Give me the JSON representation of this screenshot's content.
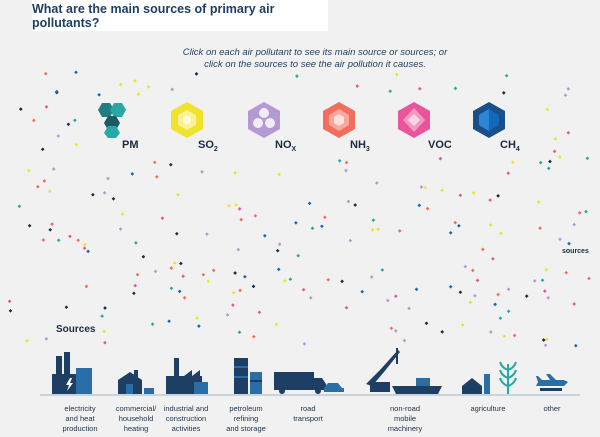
{
  "title": "What are the main sources of primary air pollutants?",
  "instructions": {
    "line1": "Click on each air pollutant to see its main source or sources; or",
    "line2": "click on the sources to see the air pollution it causes."
  },
  "pollutants": [
    {
      "name": "PM",
      "sub": "",
      "icon": "pm-hexagon-cluster-icon",
      "color": "#27a8a5"
    },
    {
      "name": "SO",
      "sub": "2",
      "icon": "so2-hexagon-icon",
      "color": "#f0e32b"
    },
    {
      "name": "NO",
      "sub": "X",
      "icon": "nox-hexagon-icon",
      "color": "#b49ad2"
    },
    {
      "name": "NH",
      "sub": "3",
      "icon": "nh3-hexagon-icon",
      "color": "#f36d5d"
    },
    {
      "name": "VOC",
      "sub": "",
      "icon": "voc-hexagon-icon",
      "color": "#e8559a"
    },
    {
      "name": "CH",
      "sub": "4",
      "icon": "ch4-hexagon-icon",
      "color": "#1468b9"
    }
  ],
  "sources_label": "Sources",
  "sources_side_label": "sources",
  "sources": [
    {
      "lines": [
        "electricity",
        "and heat",
        "production"
      ],
      "icon": "power-plant-icon"
    },
    {
      "lines": [
        "commercial/",
        "household",
        "heating"
      ],
      "icon": "house-icon"
    },
    {
      "lines": [
        "industrial and",
        "construction",
        "activities"
      ],
      "icon": "factory-icon"
    },
    {
      "lines": [
        "petroleum",
        "refining",
        "and storage"
      ],
      "icon": "refinery-icon"
    },
    {
      "lines": [
        "road",
        "transport"
      ],
      "icon": "truck-car-icon"
    },
    {
      "lines": [
        "non-road",
        "mobile",
        "machinery"
      ],
      "icon": "crane-ship-icon"
    },
    {
      "lines": [
        "agriculture"
      ],
      "icon": "farm-icon"
    },
    {
      "lines": [
        "other"
      ],
      "icon": "airplane-icon"
    }
  ],
  "colors": {
    "dark_blue": "#1d3f63",
    "dots": [
      "#27a8a5",
      "#f0e32b",
      "#b49ad2",
      "#f36d5d",
      "#e8559a",
      "#1468b9",
      "#1b2b40"
    ]
  }
}
